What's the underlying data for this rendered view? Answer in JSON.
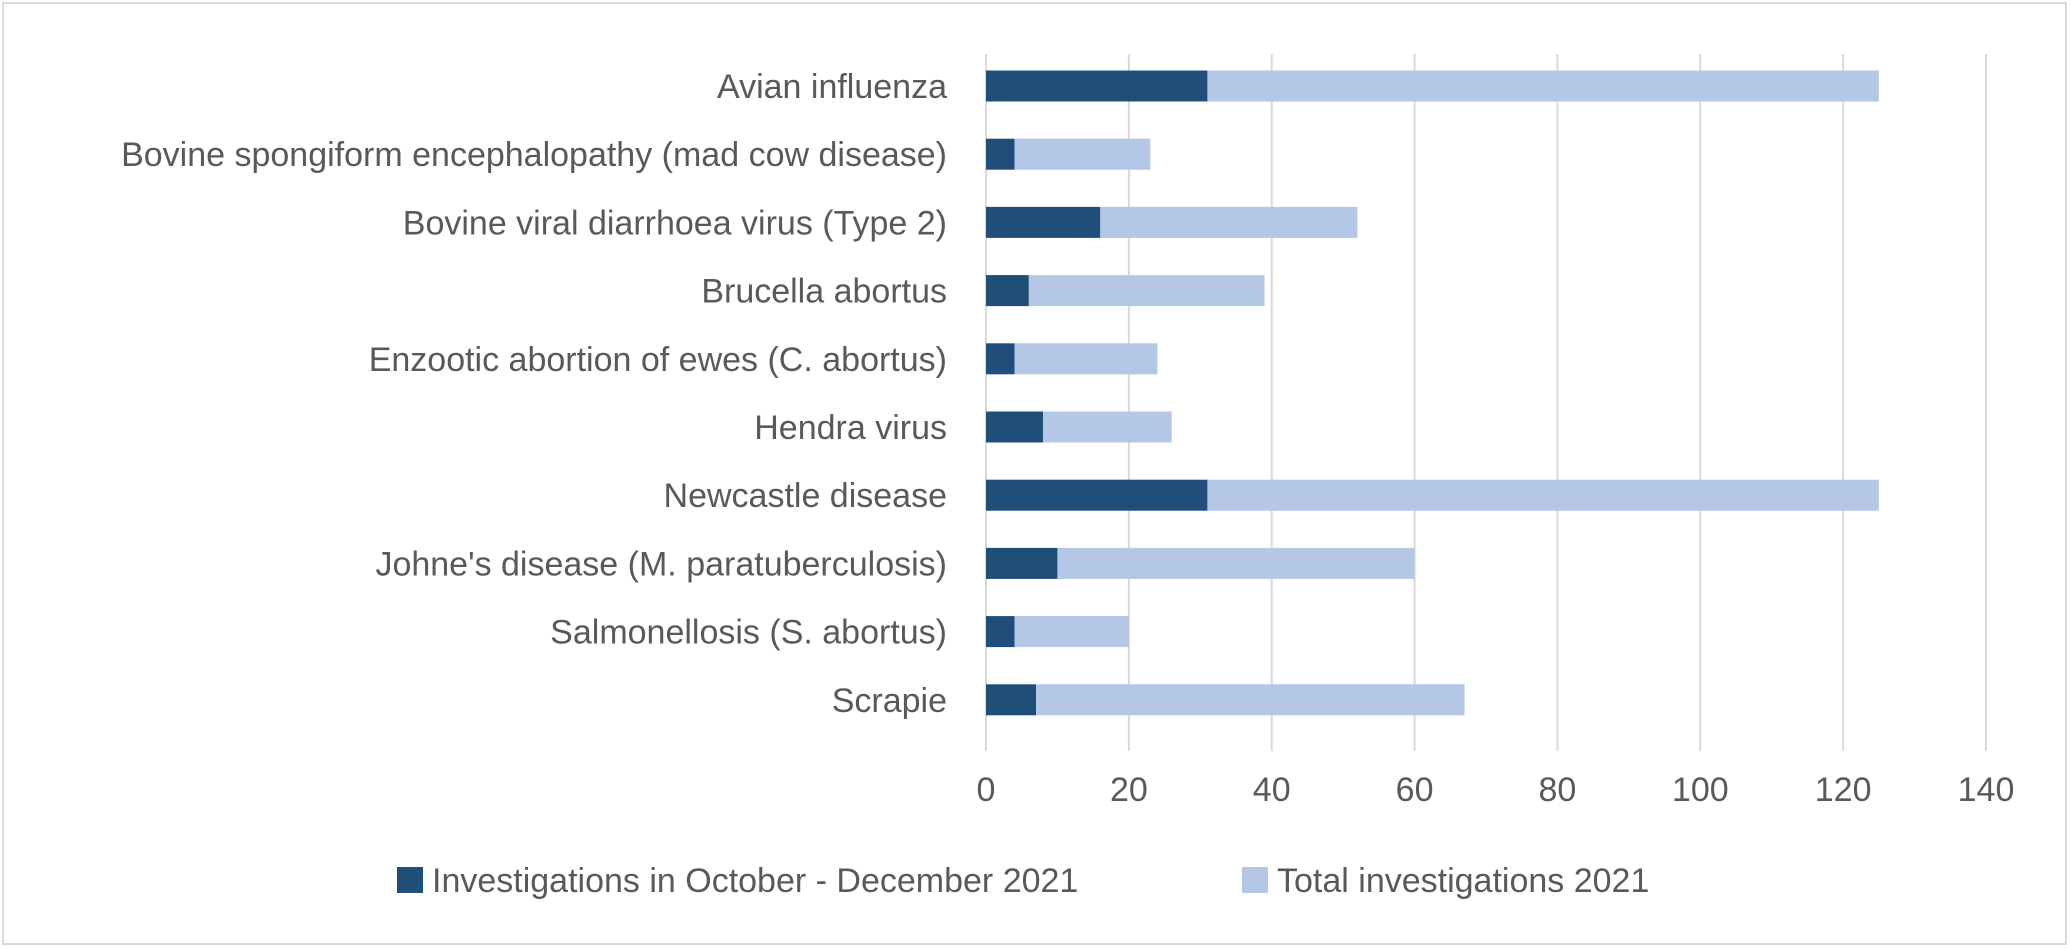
{
  "chart_data": {
    "type": "bar",
    "orientation": "horizontal",
    "stacked": true,
    "categories": [
      "Avian influenza",
      "Bovine spongiform encephalopathy (mad cow disease)",
      "Bovine viral diarrhoea virus (Type 2)",
      "Brucella abortus",
      "Enzootic abortion of ewes (C. abortus)",
      "Hendra virus",
      "Newcastle disease",
      "Johne's disease (M. paratuberculosis)",
      "Salmonellosis (S. abortus)",
      "Scrapie"
    ],
    "series": [
      {
        "name": "Investigations in October - December 2021",
        "color": "#1f4e79",
        "values": [
          31,
          4,
          16,
          6,
          4,
          8,
          31,
          10,
          4,
          7
        ]
      },
      {
        "name": "Total investigations 2021",
        "color": "#b4c7e7",
        "values": [
          94,
          19,
          36,
          33,
          20,
          18,
          94,
          50,
          16,
          60
        ]
      }
    ],
    "xlim": [
      0,
      140
    ],
    "xticks": [
      "0",
      "20",
      "40",
      "60",
      "80",
      "100",
      "120",
      "140"
    ],
    "grid": "vertical",
    "legend": "bottom",
    "title": "",
    "xlabel": "",
    "ylabel": ""
  }
}
